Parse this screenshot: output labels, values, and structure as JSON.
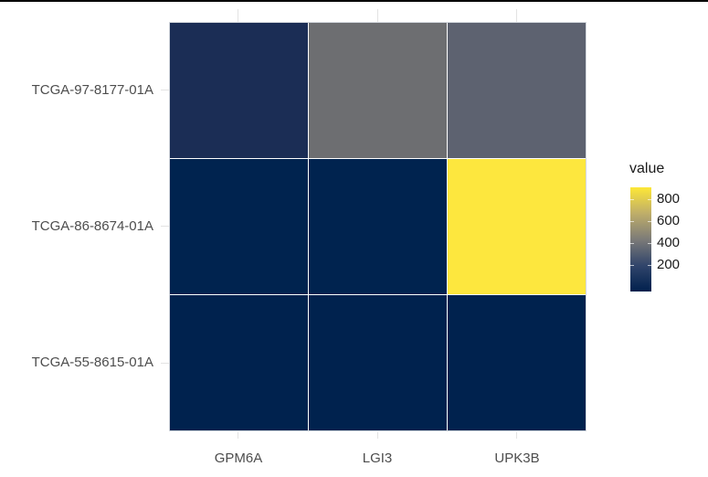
{
  "page": {
    "background": "#ffffff",
    "top_border_color": "#000000"
  },
  "chart_data": {
    "type": "heatmap",
    "title": "",
    "xlabel": "",
    "ylabel": "",
    "x_categories": [
      "GPM6A",
      "LGI3",
      "UPK3B"
    ],
    "y_categories": [
      "TCGA-97-8177-01A",
      "TCGA-86-8674-01A",
      "TCGA-55-8615-01A"
    ],
    "rows": [
      {
        "label": "TCGA-97-8177-01A",
        "cells": [
          {
            "x": "GPM6A",
            "value": 140,
            "color": "#1b2d55"
          },
          {
            "x": "LGI3",
            "value": 430,
            "color": "#6d6e71"
          },
          {
            "x": "UPK3B",
            "value": 370,
            "color": "#5d6270"
          }
        ]
      },
      {
        "label": "TCGA-86-8674-01A",
        "cells": [
          {
            "x": "GPM6A",
            "value": 25,
            "color": "#00234f"
          },
          {
            "x": "LGI3",
            "value": 25,
            "color": "#00234f"
          },
          {
            "x": "UPK3B",
            "value": 880,
            "color": "#fde73e"
          }
        ]
      },
      {
        "label": "TCGA-55-8615-01A",
        "cells": [
          {
            "x": "GPM6A",
            "value": 15,
            "color": "#00224e"
          },
          {
            "x": "LGI3",
            "value": 15,
            "color": "#00224e"
          },
          {
            "x": "UPK3B",
            "value": 15,
            "color": "#00224e"
          }
        ]
      }
    ],
    "legend": {
      "title": "value",
      "position": "right",
      "ticks": [
        "800",
        "600",
        "400",
        "200"
      ],
      "colormap": "cividis",
      "gradient_stops": [
        "#fde737",
        "#bfae69",
        "#7c7b78",
        "#31456b",
        "#00204d"
      ],
      "range_low_color": "#00204d",
      "range_high_color": "#fde737"
    },
    "axes": {
      "grid_on": false,
      "cell_gap_color": "#ffffff",
      "tick_color": "#e3e3e3",
      "axis_text_color": "#4d4d4d",
      "panel_border_color": "#d3d7dd"
    }
  }
}
